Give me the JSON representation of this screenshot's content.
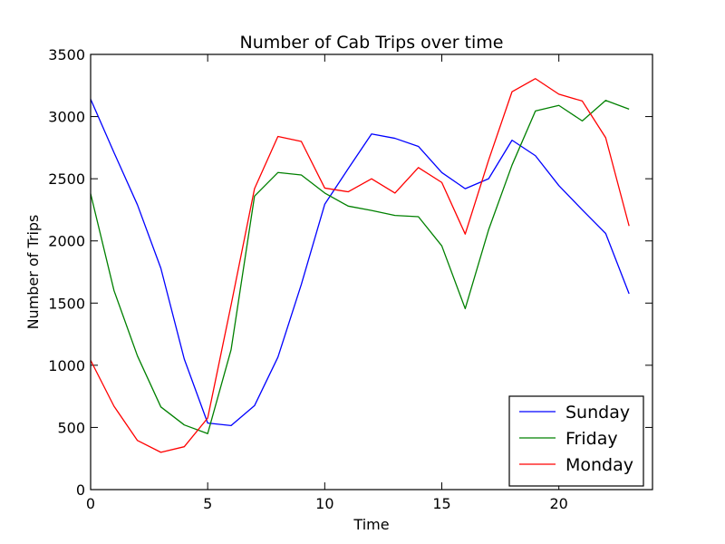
{
  "chart_data": {
    "type": "line",
    "title": "Number of Cab Trips over time",
    "xlabel": "Time",
    "ylabel": "Number of Trips",
    "xlim": [
      0,
      24
    ],
    "ylim": [
      0,
      3500
    ],
    "x_ticks": [
      0,
      5,
      10,
      15,
      20
    ],
    "x_tick_labels": [
      "0",
      "5",
      "10",
      "15",
      "20"
    ],
    "y_ticks": [
      0,
      500,
      1000,
      1500,
      2000,
      2500,
      3000,
      3500
    ],
    "y_tick_labels": [
      "0",
      "500",
      "1000",
      "1500",
      "2000",
      "2500",
      "3000",
      "3500"
    ],
    "grid": false,
    "legend_position": "lower-right",
    "x": [
      0,
      1,
      2,
      3,
      4,
      5,
      6,
      7,
      8,
      9,
      10,
      11,
      12,
      13,
      14,
      15,
      16,
      17,
      18,
      19,
      20,
      21,
      22,
      23
    ],
    "series": [
      {
        "name": "Sunday",
        "color": "#0000ff",
        "values": [
          3140,
          2710,
          2290,
          1780,
          1050,
          535,
          515,
          675,
          1065,
          1650,
          2295,
          2580,
          2860,
          2825,
          2760,
          2550,
          2420,
          2500,
          2810,
          2685,
          2445,
          2250,
          2060,
          1575
        ]
      },
      {
        "name": "Friday",
        "color": "#008000",
        "values": [
          2380,
          1600,
          1075,
          665,
          520,
          450,
          1125,
          2360,
          2550,
          2530,
          2385,
          2280,
          2245,
          2205,
          2195,
          1960,
          1455,
          2090,
          2610,
          3045,
          3090,
          2965,
          3130,
          3060
        ]
      },
      {
        "name": "Monday",
        "color": "#ff0000",
        "values": [
          1040,
          670,
          395,
          300,
          345,
          575,
          1485,
          2420,
          2840,
          2800,
          2425,
          2395,
          2500,
          2385,
          2590,
          2470,
          2055,
          2650,
          3200,
          3305,
          3180,
          3125,
          2830,
          2120
        ]
      }
    ]
  }
}
